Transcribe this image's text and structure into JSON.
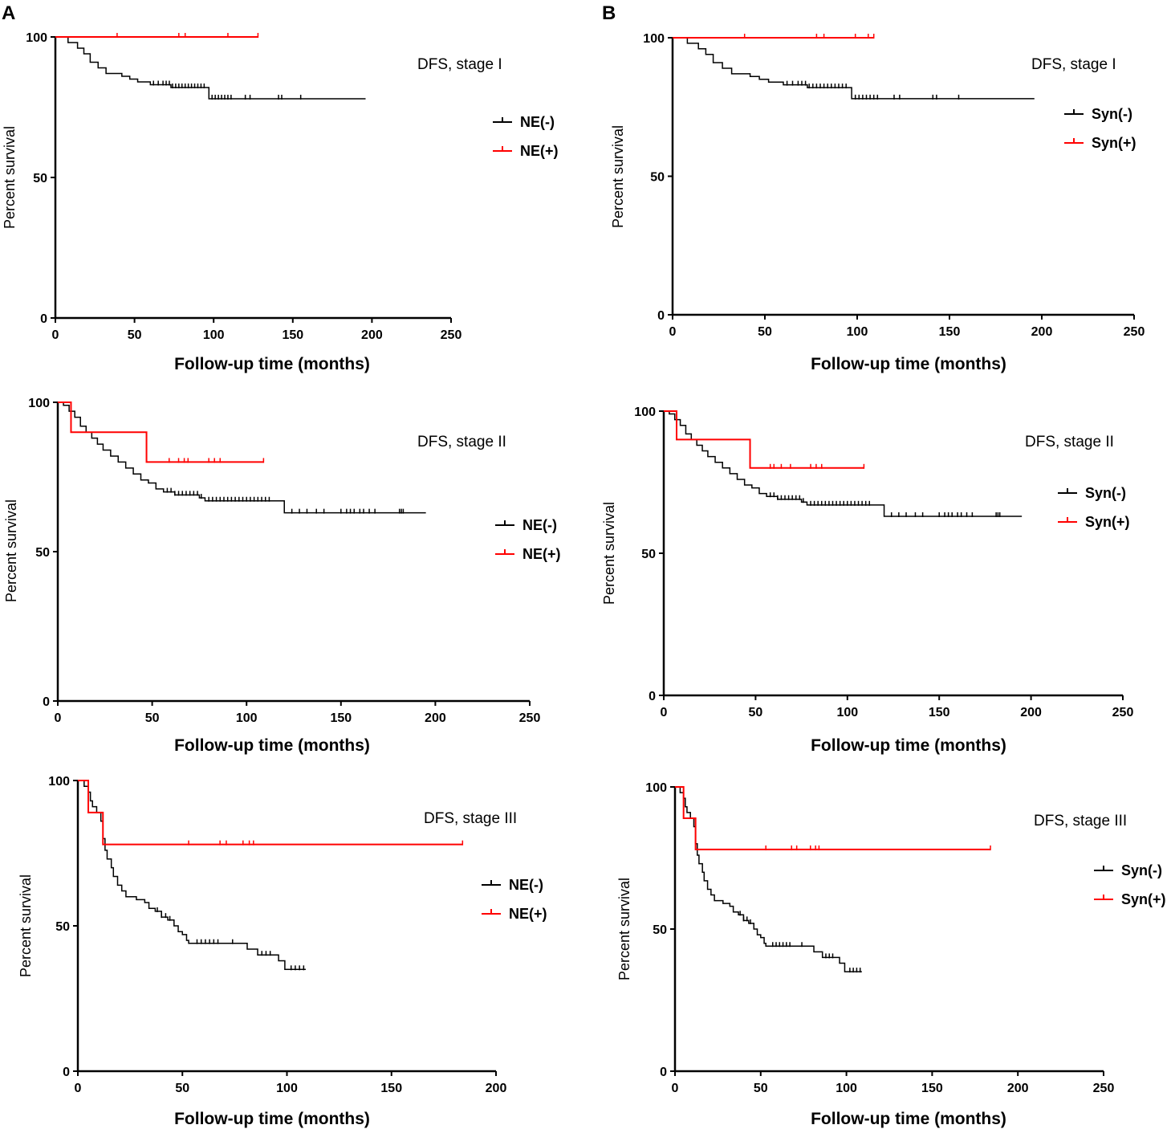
{
  "panel_labels": [
    "A",
    "B"
  ],
  "colors": {
    "negative": "#000000",
    "positive": "#ff0000",
    "axis": "#000000"
  },
  "chart_data": [
    {
      "id": "A1",
      "type": "line",
      "title": "DFS, stage I",
      "xlabel": "Follow-up time (months)",
      "ylabel": "Percent survival",
      "xlim": [
        0,
        250
      ],
      "ylim": [
        0,
        100
      ],
      "xticks": [
        0,
        50,
        100,
        150,
        200,
        250
      ],
      "yticks": [
        0,
        50,
        100
      ],
      "series": [
        {
          "name": "NE(-)",
          "color": "#000000",
          "steps": [
            [
              0,
              100
            ],
            [
              8,
              98
            ],
            [
              14,
              96
            ],
            [
              18,
              94
            ],
            [
              22,
              91
            ],
            [
              27,
              89
            ],
            [
              32,
              87
            ],
            [
              42,
              86
            ],
            [
              47,
              85
            ],
            [
              52,
              84
            ],
            [
              60,
              83
            ],
            [
              73,
              82
            ],
            [
              97,
              78
            ],
            [
              196,
              78
            ]
          ],
          "censors": [
            62,
            65,
            68,
            70,
            72,
            74,
            76,
            78,
            80,
            82,
            84,
            86,
            88,
            90,
            92,
            94,
            99,
            101,
            103,
            105,
            107,
            109,
            111,
            120,
            123,
            141,
            143,
            155
          ]
        },
        {
          "name": "NE(+)",
          "color": "#ff0000",
          "steps": [
            [
              0,
              100
            ],
            [
              128,
              100
            ]
          ],
          "censors": [
            39,
            78,
            82,
            109,
            128
          ]
        }
      ]
    },
    {
      "id": "B1",
      "type": "line",
      "title": "DFS, stage I",
      "xlabel": "Follow-up time (months)",
      "ylabel": "Percent survival",
      "xlim": [
        0,
        250
      ],
      "ylim": [
        0,
        100
      ],
      "xticks": [
        0,
        50,
        100,
        150,
        200,
        250
      ],
      "yticks": [
        0,
        50,
        100
      ],
      "series": [
        {
          "name": "Syn(-)",
          "color": "#000000",
          "steps": [
            [
              0,
              100
            ],
            [
              8,
              98
            ],
            [
              14,
              96
            ],
            [
              18,
              94
            ],
            [
              22,
              91
            ],
            [
              27,
              89
            ],
            [
              32,
              87
            ],
            [
              42,
              86
            ],
            [
              47,
              85
            ],
            [
              52,
              84
            ],
            [
              60,
              83
            ],
            [
              73,
              82
            ],
            [
              97,
              78
            ],
            [
              196,
              78
            ]
          ],
          "censors": [
            62,
            65,
            68,
            70,
            72,
            74,
            76,
            78,
            80,
            82,
            84,
            86,
            88,
            90,
            92,
            94,
            99,
            101,
            103,
            105,
            107,
            109,
            111,
            120,
            123,
            141,
            143,
            155
          ]
        },
        {
          "name": "Syn(+)",
          "color": "#ff0000",
          "steps": [
            [
              0,
              100
            ],
            [
              109,
              100
            ]
          ],
          "censors": [
            39,
            78,
            82,
            99,
            106,
            109
          ]
        }
      ]
    },
    {
      "id": "A2",
      "type": "line",
      "title": "DFS, stage II",
      "xlabel": "Follow-up time (months)",
      "ylabel": "Percent survival",
      "xlim": [
        0,
        250
      ],
      "ylim": [
        0,
        100
      ],
      "xticks": [
        0,
        50,
        100,
        150,
        200,
        250
      ],
      "yticks": [
        0,
        50,
        100
      ],
      "series": [
        {
          "name": "NE(-)",
          "color": "#000000",
          "steps": [
            [
              0,
              100
            ],
            [
              3,
              99
            ],
            [
              6,
              97
            ],
            [
              9,
              95
            ],
            [
              12,
              92
            ],
            [
              15,
              90
            ],
            [
              18,
              88
            ],
            [
              21,
              86
            ],
            [
              24,
              84
            ],
            [
              28,
              82
            ],
            [
              32,
              80
            ],
            [
              36,
              78
            ],
            [
              40,
              76
            ],
            [
              44,
              74
            ],
            [
              48,
              73
            ],
            [
              52,
              71
            ],
            [
              56,
              70
            ],
            [
              62,
              69
            ],
            [
              75,
              68
            ],
            [
              78,
              67
            ],
            [
              120,
              63
            ],
            [
              195,
              63
            ]
          ],
          "censors": [
            58,
            60,
            62,
            64,
            66,
            68,
            70,
            72,
            74,
            76,
            80,
            82,
            84,
            86,
            88,
            90,
            92,
            94,
            96,
            98,
            100,
            102,
            104,
            106,
            108,
            110,
            112,
            124,
            128,
            132,
            137,
            141,
            150,
            153,
            155,
            157,
            160,
            162,
            165,
            168,
            181,
            182,
            183
          ]
        },
        {
          "name": "NE(+)",
          "color": "#ff0000",
          "steps": [
            [
              0,
              100
            ],
            [
              7,
              90
            ],
            [
              47,
              80
            ],
            [
              109,
              80
            ]
          ],
          "censors": [
            59,
            64,
            67,
            69,
            80,
            83,
            86,
            109
          ]
        }
      ]
    },
    {
      "id": "B2",
      "type": "line",
      "title": "DFS, stage II",
      "xlabel": "Follow-up time (months)",
      "ylabel": "Percent survival",
      "xlim": [
        0,
        250
      ],
      "ylim": [
        0,
        100
      ],
      "xticks": [
        0,
        50,
        100,
        150,
        200,
        250
      ],
      "yticks": [
        0,
        50,
        100
      ],
      "series": [
        {
          "name": "Syn(-)",
          "color": "#000000",
          "steps": [
            [
              0,
              100
            ],
            [
              3,
              99
            ],
            [
              6,
              97
            ],
            [
              9,
              95
            ],
            [
              12,
              92
            ],
            [
              15,
              90
            ],
            [
              18,
              88
            ],
            [
              21,
              86
            ],
            [
              24,
              84
            ],
            [
              28,
              82
            ],
            [
              32,
              80
            ],
            [
              36,
              78
            ],
            [
              40,
              76
            ],
            [
              44,
              74
            ],
            [
              48,
              73
            ],
            [
              52,
              71
            ],
            [
              56,
              70
            ],
            [
              62,
              69
            ],
            [
              75,
              68
            ],
            [
              78,
              67
            ],
            [
              120,
              63
            ],
            [
              195,
              63
            ]
          ],
          "censors": [
            58,
            60,
            62,
            64,
            66,
            68,
            70,
            72,
            74,
            76,
            80,
            82,
            84,
            86,
            88,
            90,
            92,
            94,
            96,
            98,
            100,
            102,
            104,
            106,
            108,
            110,
            112,
            124,
            128,
            132,
            137,
            141,
            150,
            153,
            155,
            157,
            160,
            162,
            165,
            168,
            181,
            182,
            183
          ]
        },
        {
          "name": "Syn(+)",
          "color": "#ff0000",
          "steps": [
            [
              0,
              100
            ],
            [
              7,
              90
            ],
            [
              47,
              80
            ],
            [
              109,
              80
            ]
          ],
          "censors": [
            58,
            60,
            64,
            69,
            80,
            83,
            86,
            109
          ]
        }
      ]
    },
    {
      "id": "A3",
      "type": "line",
      "title": "DFS, stage III",
      "xlabel": "Follow-up time (months)",
      "ylabel": "Percent survival",
      "xlim": [
        0,
        200
      ],
      "ylim": [
        0,
        100
      ],
      "xticks": [
        0,
        50,
        100,
        150,
        200
      ],
      "yticks": [
        0,
        50,
        100
      ],
      "series": [
        {
          "name": "NE(-)",
          "color": "#000000",
          "steps": [
            [
              0,
              100
            ],
            [
              3,
              98
            ],
            [
              5,
              96
            ],
            [
              6,
              93
            ],
            [
              7,
              91
            ],
            [
              9,
              89
            ],
            [
              11,
              86
            ],
            [
              12,
              80
            ],
            [
              13,
              76
            ],
            [
              14,
              73
            ],
            [
              16,
              70
            ],
            [
              17,
              67
            ],
            [
              19,
              64
            ],
            [
              21,
              62
            ],
            [
              23,
              60
            ],
            [
              28,
              59
            ],
            [
              32,
              58
            ],
            [
              34,
              56
            ],
            [
              37,
              55
            ],
            [
              40,
              53
            ],
            [
              43,
              52
            ],
            [
              46,
              50
            ],
            [
              48,
              48
            ],
            [
              50,
              47
            ],
            [
              52,
              45
            ],
            [
              53,
              44
            ],
            [
              81,
              42
            ],
            [
              86,
              40
            ],
            [
              96,
              38
            ],
            [
              99,
              35
            ],
            [
              109,
              35
            ]
          ],
          "censors": [
            38,
            40,
            42,
            44,
            57,
            59,
            61,
            63,
            65,
            67,
            74,
            88,
            90,
            92,
            102,
            104,
            106,
            108
          ]
        },
        {
          "name": "NE(+)",
          "color": "#ff0000",
          "steps": [
            [
              0,
              100
            ],
            [
              5,
              89
            ],
            [
              12,
              78
            ],
            [
              184,
              78
            ]
          ],
          "censors": [
            53,
            68,
            71,
            79,
            82,
            84,
            184
          ]
        }
      ]
    },
    {
      "id": "B3",
      "type": "line",
      "title": "DFS, stage III",
      "xlabel": "Follow-up time (months)",
      "ylabel": "Percent survival",
      "xlim": [
        0,
        250
      ],
      "ylim": [
        0,
        100
      ],
      "xticks": [
        0,
        50,
        100,
        150,
        200,
        250
      ],
      "yticks": [
        0,
        50,
        100
      ],
      "series": [
        {
          "name": "Syn(-)",
          "color": "#000000",
          "steps": [
            [
              0,
              100
            ],
            [
              3,
              98
            ],
            [
              5,
              96
            ],
            [
              6,
              93
            ],
            [
              7,
              91
            ],
            [
              9,
              89
            ],
            [
              11,
              86
            ],
            [
              12,
              80
            ],
            [
              13,
              76
            ],
            [
              14,
              73
            ],
            [
              16,
              70
            ],
            [
              17,
              67
            ],
            [
              19,
              64
            ],
            [
              21,
              62
            ],
            [
              23,
              60
            ],
            [
              28,
              59
            ],
            [
              32,
              58
            ],
            [
              34,
              56
            ],
            [
              37,
              55
            ],
            [
              40,
              53
            ],
            [
              43,
              52
            ],
            [
              46,
              50
            ],
            [
              48,
              48
            ],
            [
              50,
              47
            ],
            [
              52,
              45
            ],
            [
              53,
              44
            ],
            [
              81,
              42
            ],
            [
              86,
              40
            ],
            [
              96,
              38
            ],
            [
              99,
              35
            ],
            [
              109,
              35
            ]
          ],
          "censors": [
            38,
            40,
            42,
            44,
            57,
            59,
            61,
            63,
            65,
            67,
            74,
            88,
            90,
            92,
            102,
            104,
            106,
            108
          ]
        },
        {
          "name": "Syn(+)",
          "color": "#ff0000",
          "steps": [
            [
              0,
              100
            ],
            [
              5,
              89
            ],
            [
              12,
              78
            ],
            [
              184,
              78
            ]
          ],
          "censors": [
            53,
            68,
            71,
            79,
            82,
            84,
            184
          ]
        }
      ]
    }
  ]
}
